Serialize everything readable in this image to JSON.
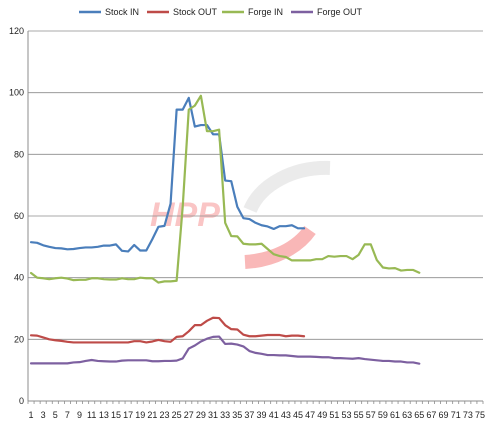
{
  "chart_data": {
    "type": "line",
    "title": "",
    "xlabel": "",
    "ylabel": "",
    "ylim": [
      0,
      120
    ],
    "yticks": [
      0,
      20,
      40,
      60,
      80,
      100,
      120
    ],
    "xlim": [
      1,
      75
    ],
    "xticks": [
      "1",
      "3",
      "5",
      "7",
      "9",
      "11",
      "13",
      "15",
      "17",
      "19",
      "21",
      "23",
      "25",
      "27",
      "29",
      "31",
      "33",
      "35",
      "37",
      "39",
      "41",
      "43",
      "45",
      "47",
      "49",
      "51",
      "53",
      "55",
      "57",
      "59",
      "61",
      "63",
      "65",
      "67",
      "69",
      "71",
      "73",
      "75"
    ],
    "grid": "horizontal",
    "legend_position": "top",
    "watermark": "HPP",
    "colors": {
      "stock_in": "#4a7ebb",
      "stock_out": "#be4b48",
      "forge_in": "#98b954",
      "forge_out": "#7d60a0",
      "grid": "#8c8c8c"
    },
    "series": [
      {
        "name": "Stock IN",
        "color": "#4a7ebb",
        "x": [
          1,
          2,
          3,
          4,
          5,
          6,
          7,
          8,
          9,
          10,
          11,
          12,
          13,
          14,
          15,
          16,
          17,
          18,
          19,
          20,
          21,
          22,
          23,
          24,
          25,
          26,
          27,
          28,
          29,
          30,
          31,
          32,
          33,
          34,
          35,
          36,
          37,
          38,
          39,
          40,
          41,
          42,
          43,
          44,
          45,
          46
        ],
        "values": [
          51.5,
          51.3,
          50.5,
          50,
          49.6,
          49.5,
          49.2,
          49.3,
          49.6,
          49.8,
          49.8,
          50,
          50.4,
          50.4,
          50.8,
          48.7,
          48.5,
          50.6,
          48.8,
          48.8,
          52.5,
          56.5,
          56.8,
          64,
          94.5,
          94.5,
          98.3,
          89,
          89.5,
          89.5,
          86.5,
          86.5,
          71.5,
          71.3,
          63,
          59.3,
          59,
          57.8,
          57,
          56.6,
          55.8,
          56.7,
          56.7,
          57,
          56,
          56
        ]
      },
      {
        "name": "Stock OUT",
        "color": "#be4b48",
        "x": [
          1,
          2,
          3,
          4,
          5,
          6,
          7,
          8,
          9,
          10,
          11,
          12,
          13,
          14,
          15,
          16,
          17,
          18,
          19,
          20,
          21,
          22,
          23,
          24,
          25,
          26,
          27,
          28,
          29,
          30,
          31,
          32,
          33,
          34,
          35,
          36,
          37,
          38,
          39,
          40,
          41,
          42,
          43,
          44,
          45,
          46
        ],
        "values": [
          21.3,
          21.2,
          20.6,
          20,
          19.7,
          19.5,
          19.2,
          19,
          19,
          19,
          19,
          19,
          19,
          19,
          19,
          19,
          19,
          19.4,
          19.4,
          19,
          19.3,
          19.8,
          19.4,
          19.2,
          20.8,
          21,
          22.6,
          24.6,
          24.6,
          26,
          27,
          26.9,
          24.6,
          23.3,
          23.2,
          21.5,
          21,
          21,
          21.2,
          21.4,
          21.4,
          21.4,
          21,
          21.2,
          21.2,
          21
        ]
      },
      {
        "name": "Forge IN",
        "color": "#98b954",
        "x": [
          1,
          2,
          3,
          4,
          5,
          6,
          7,
          8,
          9,
          10,
          11,
          12,
          13,
          14,
          15,
          16,
          17,
          18,
          19,
          20,
          21,
          22,
          23,
          24,
          25,
          26,
          27,
          28,
          29,
          30,
          31,
          32,
          33,
          34,
          35,
          36,
          37,
          38,
          39,
          40,
          41,
          42,
          43,
          44,
          45,
          46,
          47,
          48,
          49,
          50,
          51,
          52,
          53,
          54,
          55,
          56,
          57,
          58,
          59,
          60,
          61,
          62,
          63,
          64,
          65
        ],
        "values": [
          41.5,
          40,
          39.8,
          39.5,
          39.8,
          40,
          39.7,
          39.2,
          39.3,
          39.3,
          39.8,
          39.8,
          39.5,
          39.4,
          39.4,
          39.8,
          39.5,
          39.5,
          40,
          39.8,
          39.8,
          38.4,
          38.8,
          38.8,
          39,
          63,
          94.5,
          95.8,
          99,
          87.5,
          87.5,
          88,
          57.8,
          53.5,
          53.4,
          51,
          50.8,
          50.8,
          51,
          49.3,
          47.6,
          47,
          46.7,
          45.6,
          45.6,
          45.6,
          45.6,
          46,
          46,
          47,
          46.8,
          47,
          47,
          46,
          47.4,
          50.8,
          50.8,
          45.7,
          43.3,
          43,
          43.1,
          42.3,
          42.5,
          42.5,
          41.6
        ]
      },
      {
        "name": "Forge OUT",
        "color": "#7d60a0",
        "x": [
          1,
          2,
          3,
          4,
          5,
          6,
          7,
          8,
          9,
          10,
          11,
          12,
          13,
          14,
          15,
          16,
          17,
          18,
          19,
          20,
          21,
          22,
          23,
          24,
          25,
          26,
          27,
          28,
          29,
          30,
          31,
          32,
          33,
          34,
          35,
          36,
          37,
          38,
          39,
          40,
          41,
          42,
          43,
          44,
          45,
          46,
          47,
          48,
          49,
          50,
          51,
          52,
          53,
          54,
          55,
          56,
          57,
          58,
          59,
          60,
          61,
          62,
          63,
          64,
          65
        ],
        "values": [
          12.2,
          12.2,
          12.2,
          12.2,
          12.2,
          12.2,
          12.2,
          12.5,
          12.6,
          13,
          13.3,
          13,
          12.9,
          12.8,
          12.8,
          13.1,
          13.2,
          13.2,
          13.2,
          13.2,
          12.9,
          12.9,
          13,
          13,
          13.1,
          13.8,
          17,
          18,
          19.3,
          20.2,
          20.8,
          20.9,
          18.5,
          18.6,
          18.3,
          17.7,
          16.2,
          15.6,
          15.3,
          14.9,
          14.9,
          14.8,
          14.8,
          14.6,
          14.4,
          14.4,
          14.4,
          14.3,
          14.2,
          14.2,
          13.9,
          13.9,
          13.8,
          13.7,
          13.9,
          13.6,
          13.4,
          13.2,
          13,
          13,
          12.8,
          12.8,
          12.5,
          12.5,
          12.1
        ]
      }
    ]
  }
}
